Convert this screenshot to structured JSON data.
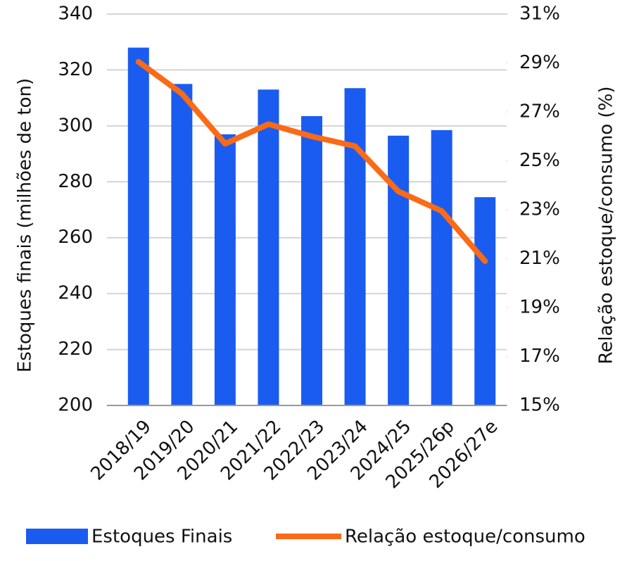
{
  "chart_data": {
    "type": "bar",
    "y_label": "Estoques finais (milhões de ton)",
    "y2_label": "Relação estoque/consumo (%)",
    "categories": [
      "2018/19",
      "2019/20",
      "2020/21",
      "2021/22",
      "2022/23",
      "2023/24",
      "2024/25",
      "2025/26p",
      "2026/27e"
    ],
    "series": [
      {
        "name": "Estoques Finais",
        "color": "#1a5cf0",
        "type": "bar",
        "values": [
          328,
          315,
          297,
          313,
          303.5,
          313.5,
          296.5,
          298.5,
          274.5
        ]
      },
      {
        "name": "Relação estoque/consumo",
        "color": "#fb6a17",
        "type": "line",
        "axis": "y2",
        "values": [
          29.05,
          27.75,
          25.7,
          26.5,
          26.0,
          25.6,
          23.75,
          22.95,
          20.9
        ]
      }
    ],
    "ylim": [
      200,
      340
    ],
    "yticks": [
      200,
      220,
      240,
      260,
      280,
      300,
      320,
      340
    ],
    "y2lim": [
      15,
      31
    ],
    "y2ticks": [
      {
        "value": 15,
        "label": "15%"
      },
      {
        "value": 17,
        "label": "17%"
      },
      {
        "value": 19,
        "label": "19%"
      },
      {
        "value": 21,
        "label": "21%"
      },
      {
        "value": 23,
        "label": "23%"
      },
      {
        "value": 25,
        "label": "25%"
      },
      {
        "value": 27,
        "label": "27%"
      },
      {
        "value": 29,
        "label": "29%"
      },
      {
        "value": 31,
        "label": "31%"
      }
    ],
    "grid": true
  }
}
